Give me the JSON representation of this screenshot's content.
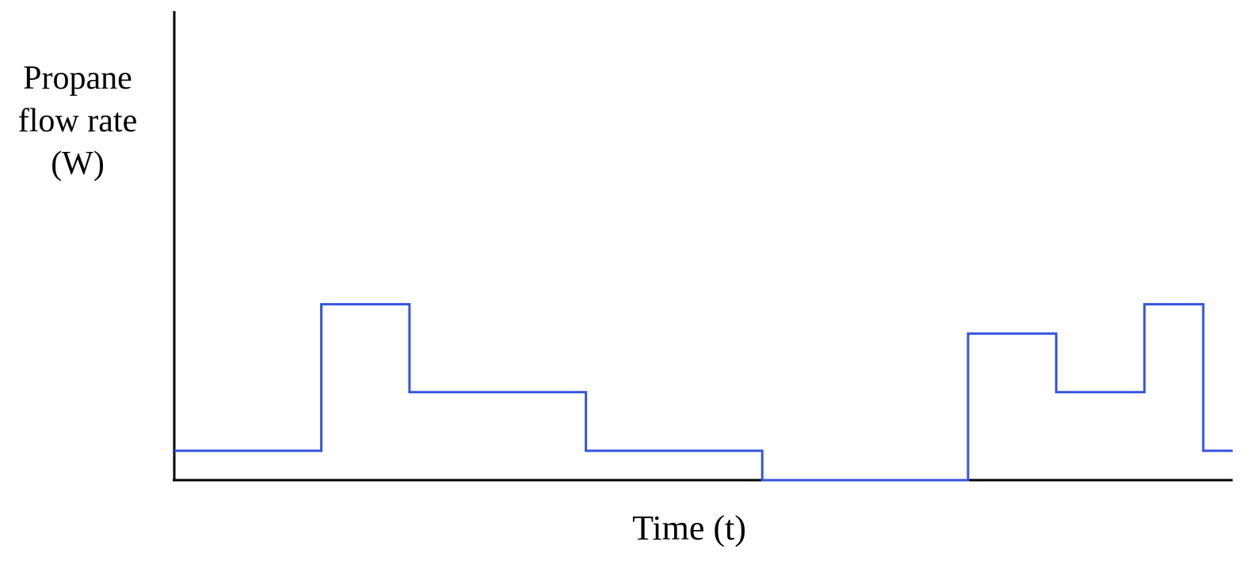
{
  "chart_data": {
    "type": "line",
    "step": true,
    "ylabel_lines": [
      "Propane",
      "flow rate",
      "(W)"
    ],
    "xlabel": "Time (t)",
    "line_color": "#3355dd",
    "axis_color": "#000000",
    "grid": false,
    "xlim": [
      0,
      36
    ],
    "ylim": [
      0,
      16
    ],
    "series": [
      {
        "x": [
          0,
          5,
          5,
          8,
          8,
          14,
          14,
          20,
          20,
          27,
          27,
          30,
          30,
          33,
          33,
          35,
          35,
          36
        ],
        "values": [
          1,
          1,
          6,
          6,
          3,
          3,
          1,
          1,
          0,
          0,
          5,
          5,
          3,
          3,
          6,
          6,
          1,
          1
        ]
      }
    ]
  }
}
